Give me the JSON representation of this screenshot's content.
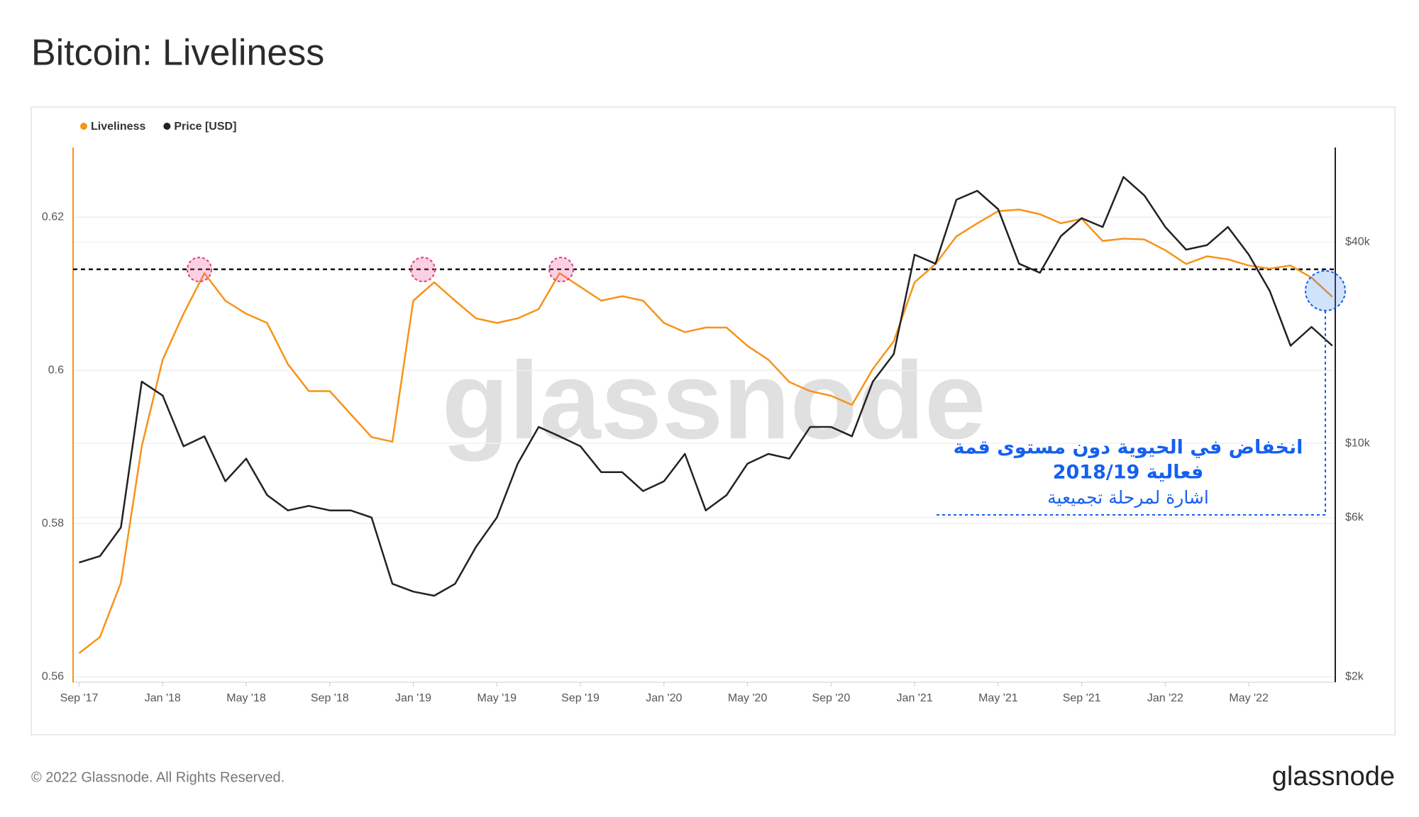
{
  "chart_data": {
    "type": "line",
    "title": "Bitcoin: Liveliness",
    "categories": [
      "Sep '17",
      null,
      null,
      null,
      "Jan '18",
      null,
      null,
      null,
      "May '18",
      null,
      null,
      null,
      "Sep '18",
      null,
      null,
      null,
      "Jan '19",
      null,
      null,
      null,
      "May '19",
      null,
      null,
      null,
      "Sep '19",
      null,
      null,
      null,
      "Jan '20",
      null,
      null,
      null,
      "May '20",
      null,
      null,
      null,
      "Sep '20",
      null,
      null,
      null,
      "Jan '21",
      null,
      null,
      null,
      "May '21",
      null,
      null,
      null,
      "Sep '21",
      null,
      null,
      null,
      "Jan '22",
      null,
      null,
      null,
      "May '22",
      null,
      null,
      null,
      null
    ],
    "series": [
      {
        "name": "Liveliness",
        "color": "#f7931a",
        "values": [
          0.5631,
          0.5652,
          0.5723,
          0.5901,
          0.6014,
          0.6074,
          0.6127,
          0.6091,
          0.6074,
          0.6062,
          0.6008,
          0.5973,
          0.5973,
          0.5943,
          0.5913,
          0.5907,
          0.6091,
          0.6115,
          0.6091,
          0.6068,
          0.6062,
          0.6068,
          0.608,
          0.6127,
          0.6109,
          0.6091,
          0.6097,
          0.6091,
          0.6062,
          0.605,
          0.6056,
          0.6056,
          0.6032,
          0.6014,
          0.5985,
          0.5973,
          0.5967,
          0.5955,
          0.6002,
          0.6038,
          0.6115,
          0.6139,
          0.6175,
          0.6192,
          0.6208,
          0.621,
          0.6204,
          0.6192,
          0.6198,
          0.6169,
          0.6172,
          0.6171,
          0.6157,
          0.6139,
          0.6149,
          0.6145,
          0.6137,
          0.6133,
          0.6137,
          0.6121,
          0.6096
        ]
      },
      {
        "name": "Price [USD]",
        "color": "#222222",
        "axis": "y2",
        "values": [
          4400,
          4600,
          5600,
          15300,
          13900,
          9800,
          10500,
          7700,
          9000,
          7000,
          6300,
          6500,
          6300,
          6300,
          6000,
          3800,
          3600,
          3500,
          3800,
          4900,
          6000,
          8700,
          11200,
          10500,
          9800,
          8200,
          8200,
          7200,
          7700,
          9300,
          6300,
          7000,
          8700,
          9300,
          9000,
          11200,
          11200,
          10500,
          15300,
          18500,
          36700,
          34500,
          53600,
          57000,
          50200,
          34500,
          32400,
          41700,
          47200,
          44400,
          62700,
          55200,
          44400,
          38000,
          39200,
          44400,
          36700,
          28600,
          19600,
          22300,
          19600
        ]
      }
    ],
    "ylim": [
      0.5593,
      0.6291
    ],
    "yticks": [
      0.56,
      0.58,
      0.6,
      0.62
    ],
    "y2lim": [
      1928,
      76800
    ],
    "y2scale": "log",
    "y2ticks": [
      {
        "value": 2000,
        "label": "$2k"
      },
      {
        "value": 6000,
        "label": "$6k"
      },
      {
        "value": 10000,
        "label": "$10k"
      },
      {
        "value": 40000,
        "label": "$40k"
      }
    ],
    "threshold": 0.6132,
    "grid": true,
    "annotation": [
      "انخفاض في الحيوية دون مستوى قمة",
      "فعالية 2018/19",
      "اشارة لمرحلة تجميعية"
    ],
    "watermark": "glassnode",
    "footer": "© 2022 Glassnode. All Rights Reserved.",
    "logo": "glassnode"
  }
}
